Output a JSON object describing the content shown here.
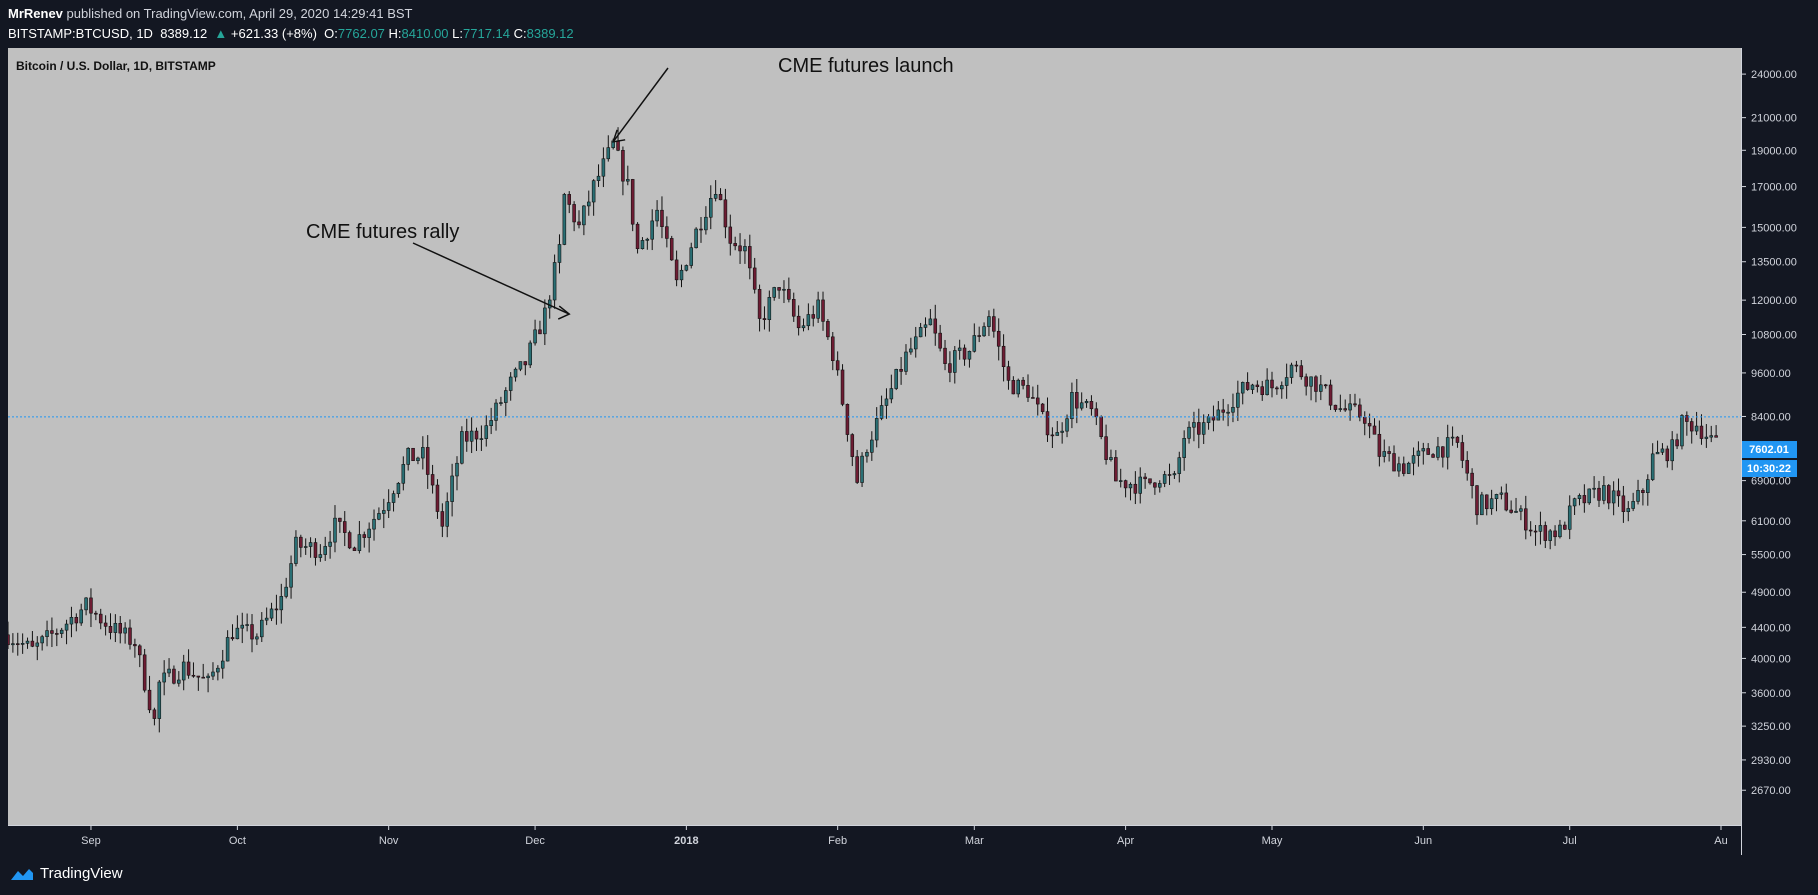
{
  "header": {
    "author": "MrRenev",
    "published_text": "published on TradingView.com, April 29, 2020 14:29:41 BST",
    "symbol": "BITSTAMP:BTCUSD, 1D",
    "last": "8389.12",
    "change": "+621.33 (+8%)",
    "o_label": "O:",
    "o": "7762.07",
    "h_label": "H:",
    "h": "8410.00",
    "l_label": "L:",
    "l": "7717.14",
    "c_label": "C:",
    "c": "8389.12"
  },
  "footer": {
    "brand": "TradingView"
  },
  "colors": {
    "background": "#131722",
    "plot_bg": "#c0c0c0",
    "up": "#2a6f74",
    "down": "#6e1c33",
    "price_badge": "#2196f3"
  },
  "chart_data": {
    "type": "candlestick",
    "title": "Bitcoin / U.S. Dollar, 1D, BITSTAMP",
    "y_scale": "log",
    "ylim": [
      2400,
      26000
    ],
    "y_ticks": [
      "24000.00",
      "21000.00",
      "19000.00",
      "17000.00",
      "15000.00",
      "13500.00",
      "12000.00",
      "10800.00",
      "9600.00",
      "8400.00",
      "7500.00",
      "6900.00",
      "6100.00",
      "5500.00",
      "4900.00",
      "4400.00",
      "4000.00",
      "3600.00",
      "3250.00",
      "2930.00",
      "2670.00"
    ],
    "x_labels": [
      "Sep",
      "Oct",
      "Nov",
      "Dec",
      "2018",
      "Feb",
      "Mar",
      "Apr",
      "May",
      "Jun",
      "Jul",
      "Au"
    ],
    "reference_line": 8389.12,
    "price_badge": "7602.01",
    "countdown_badge": "10:30:22",
    "annotations": [
      {
        "text": "CME futures launch",
        "points_to": "2017-12-17"
      },
      {
        "text": "CME futures rally",
        "points_to": "2017-12-08"
      }
    ],
    "close_path": [
      [
        "2017-08-15",
        4300
      ],
      [
        "2017-08-20",
        4100
      ],
      [
        "2017-08-25",
        4350
      ],
      [
        "2017-08-31",
        4700
      ],
      [
        "2017-09-05",
        4400
      ],
      [
        "2017-09-10",
        4200
      ],
      [
        "2017-09-14",
        3300
      ],
      [
        "2017-09-15",
        3700
      ],
      [
        "2017-09-20",
        3900
      ],
      [
        "2017-09-25",
        3700
      ],
      [
        "2017-09-30",
        4350
      ],
      [
        "2017-10-05",
        4300
      ],
      [
        "2017-10-10",
        4800
      ],
      [
        "2017-10-13",
        5650
      ],
      [
        "2017-10-18",
        5600
      ],
      [
        "2017-10-21",
        6000
      ],
      [
        "2017-10-25",
        5700
      ],
      [
        "2017-10-31",
        6400
      ],
      [
        "2017-11-05",
        7400
      ],
      [
        "2017-11-08",
        7450
      ],
      [
        "2017-11-12",
        6000
      ],
      [
        "2017-11-16",
        7800
      ],
      [
        "2017-11-21",
        8100
      ],
      [
        "2017-11-26",
        9300
      ],
      [
        "2017-11-29",
        9900
      ],
      [
        "2017-12-03",
        11500
      ],
      [
        "2017-12-06",
        14000
      ],
      [
        "2017-12-07",
        16500
      ],
      [
        "2017-12-10",
        15000
      ],
      [
        "2017-12-13",
        17000
      ],
      [
        "2017-12-17",
        19300
      ],
      [
        "2017-12-20",
        17000
      ],
      [
        "2017-12-22",
        14000
      ],
      [
        "2017-12-26",
        15800
      ],
      [
        "2017-12-30",
        12600
      ],
      [
        "2018-01-03",
        14800
      ],
      [
        "2018-01-07",
        17100
      ],
      [
        "2018-01-10",
        14500
      ],
      [
        "2018-01-13",
        14000
      ],
      [
        "2018-01-16",
        11200
      ],
      [
        "2018-01-20",
        12600
      ],
      [
        "2018-01-24",
        11000
      ],
      [
        "2018-01-28",
        11700
      ],
      [
        "2018-01-31",
        10200
      ],
      [
        "2018-02-02",
        8800
      ],
      [
        "2018-02-05",
        6900
      ],
      [
        "2018-02-07",
        7700
      ],
      [
        "2018-02-10",
        8500
      ],
      [
        "2018-02-15",
        10100
      ],
      [
        "2018-02-20",
        11200
      ],
      [
        "2018-02-23",
        9800
      ],
      [
        "2018-02-28",
        10300
      ],
      [
        "2018-03-04",
        11500
      ],
      [
        "2018-03-08",
        9300
      ],
      [
        "2018-03-12",
        9100
      ],
      [
        "2018-03-15",
        8300
      ],
      [
        "2018-03-18",
        7900
      ],
      [
        "2018-03-21",
        8900
      ],
      [
        "2018-03-25",
        8500
      ],
      [
        "2018-03-30",
        6900
      ],
      [
        "2018-04-05",
        6800
      ],
      [
        "2018-04-08",
        7000
      ],
      [
        "2018-04-11",
        6900
      ],
      [
        "2018-04-13",
        7900
      ],
      [
        "2018-04-18",
        8200
      ],
      [
        "2018-04-23",
        8900
      ],
      [
        "2018-04-27",
        9300
      ],
      [
        "2018-05-01",
        9200
      ],
      [
        "2018-05-05",
        9800
      ],
      [
        "2018-05-10",
        9300
      ],
      [
        "2018-05-15",
        8600
      ],
      [
        "2018-05-20",
        8400
      ],
      [
        "2018-05-23",
        7500
      ],
      [
        "2018-05-28",
        7200
      ],
      [
        "2018-06-03",
        7600
      ],
      [
        "2018-06-08",
        7700
      ],
      [
        "2018-06-12",
        6400
      ],
      [
        "2018-06-17",
        6500
      ],
      [
        "2018-06-22",
        6100
      ],
      [
        "2018-06-24",
        5900
      ],
      [
        "2018-06-29",
        5900
      ],
      [
        "2018-07-02",
        6400
      ],
      [
        "2018-07-08",
        6700
      ],
      [
        "2018-07-13",
        6250
      ],
      [
        "2018-07-16",
        6700
      ],
      [
        "2018-07-18",
        7400
      ],
      [
        "2018-07-22",
        7600
      ],
      [
        "2018-07-24",
        8200
      ],
      [
        "2018-07-27",
        8200
      ],
      [
        "2018-07-31",
        7700
      ]
    ]
  }
}
